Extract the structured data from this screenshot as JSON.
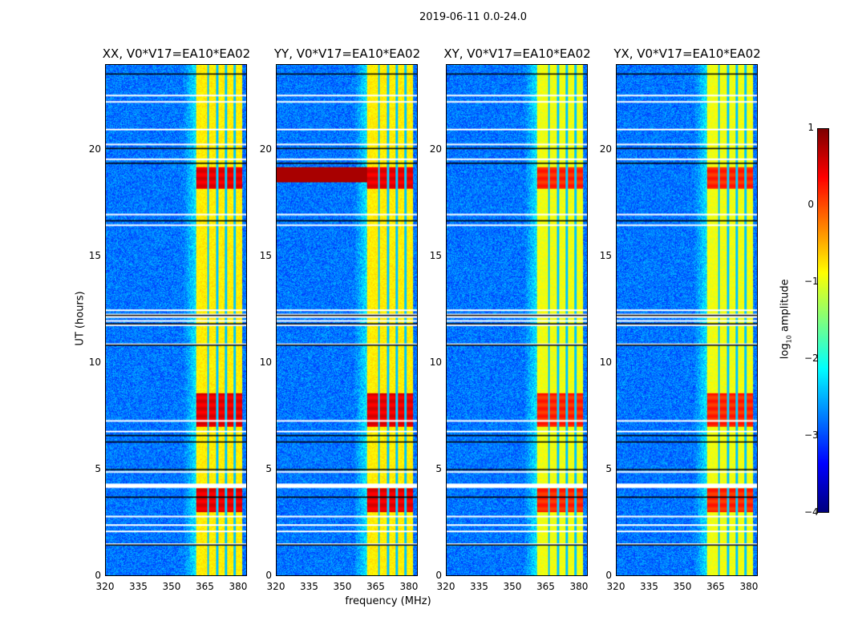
{
  "chart_data": {
    "type": "heatmap",
    "title": "2019-06-11 0.0-24.0",
    "xlabel": "frequency (MHz)",
    "ylabel": "UT (hours)",
    "xlim": [
      320,
      384
    ],
    "ylim": [
      0,
      24
    ],
    "xticks": [
      "320",
      "335",
      "350",
      "365",
      "380"
    ],
    "yticks": [
      "0",
      "5",
      "10",
      "15",
      "20"
    ],
    "panels": [
      {
        "title": "XX, V0*V17=EA10*EA02",
        "pol": "XX"
      },
      {
        "title": "YY, V0*V17=EA10*EA02",
        "pol": "YY"
      },
      {
        "title": "XY, V0*V17=EA10*EA02",
        "pol": "XY"
      },
      {
        "title": "YX, V0*V17=EA10*EA02",
        "pol": "YX"
      }
    ],
    "colorbar": {
      "label": "log10 amplitude",
      "label_main": "log",
      "label_sub": "10",
      "label_rest": " amplitude",
      "range": [
        -4,
        1
      ],
      "ticks": [
        "1",
        "0",
        "−1",
        "−2",
        "−3",
        "−4"
      ],
      "colormap": "jet"
    },
    "features": {
      "background_log_amp": -2.8,
      "bright_band_mhz": [
        361,
        382
      ],
      "bright_band_log_amp": -0.8,
      "band_gaps_mhz": [
        366.5,
        370.5,
        374.5,
        378.5
      ],
      "strong_rows_hours": [
        [
          3.0,
          4.1
        ],
        [
          7.0,
          8.6
        ],
        [
          18.2,
          19.2
        ]
      ],
      "strong_rows_log_amp": 0.6,
      "flagged_rows_hours": [
        1.5,
        2.1,
        2.4,
        2.8,
        4.2,
        4.3,
        4.9,
        6.8,
        7.3,
        10.9,
        11.8,
        12.0,
        12.2,
        12.5,
        16.5,
        17.0,
        19.6,
        20.3,
        21.0,
        22.3,
        22.6
      ],
      "black_rows_hours": [
        1.45,
        3.7,
        5.0,
        6.3,
        6.6,
        10.85,
        11.85,
        12.25,
        16.7,
        19.4,
        20.1,
        23.6
      ]
    }
  }
}
